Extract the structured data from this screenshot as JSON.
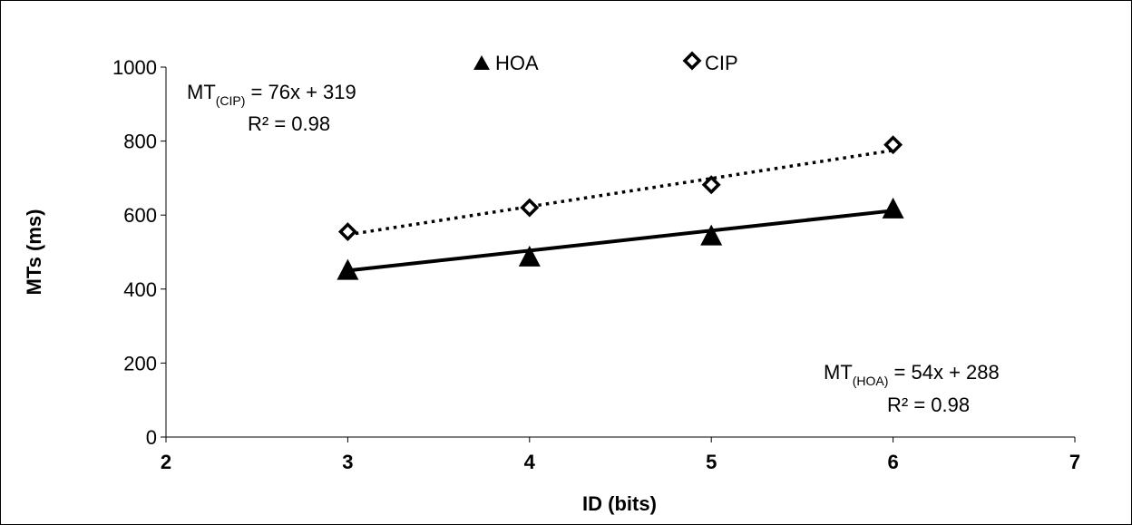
{
  "chart_data": {
    "type": "scatter",
    "xlabel": "ID (bits)",
    "ylabel": "MTs (ms)",
    "xlim": [
      2,
      7
    ],
    "ylim": [
      0,
      1000
    ],
    "x_ticks": [
      "2",
      "3",
      "4",
      "5",
      "6",
      "7"
    ],
    "y_ticks": [
      "0",
      "200",
      "400",
      "600",
      "800",
      "1000"
    ],
    "grid": false,
    "legend_position": "top-center",
    "series": [
      {
        "name": "HOA",
        "marker": "filled-triangle",
        "color": "#000000",
        "x": [
          3,
          4,
          5,
          6
        ],
        "y": [
          452,
          488,
          545,
          618
        ],
        "trendline": {
          "slope": 54,
          "intercept": 288,
          "style": "solid",
          "label_main": "MT",
          "label_sub": "(HOA)",
          "label_eq": " = 54x + 288",
          "r2": "R² = 0.98"
        }
      },
      {
        "name": "CIP",
        "marker": "open-diamond",
        "color": "#000000",
        "x": [
          3,
          4,
          5,
          6
        ],
        "y": [
          555,
          620,
          682,
          790
        ],
        "trendline": {
          "slope": 76,
          "intercept": 319,
          "style": "dotted",
          "label_main": "MT",
          "label_sub": "(CIP)",
          "label_eq": " = 76x + 319",
          "r2": "R² = 0.98"
        }
      }
    ]
  }
}
